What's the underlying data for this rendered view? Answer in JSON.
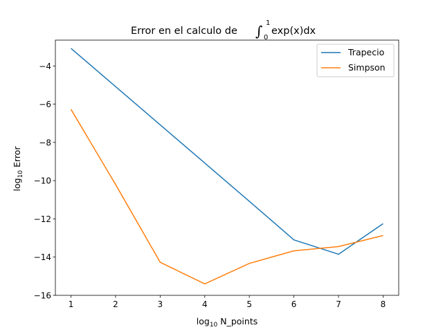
{
  "chart_data": {
    "type": "line",
    "title": {
      "prefix": "Error en el calculo de ",
      "integral_sign": "∫",
      "upper_limit": "1",
      "lower_limit": "0",
      "integrand": "exp(x)dx"
    },
    "xlabel": {
      "base": "log",
      "subscript": "10",
      "rest": " N_points"
    },
    "ylabel": {
      "base": "log",
      "subscript": "10",
      "rest": " Error"
    },
    "xlim": [
      0.65,
      8.35
    ],
    "ylim": [
      -16.0,
      -2.65
    ],
    "xticks": [
      1,
      2,
      3,
      4,
      5,
      6,
      7,
      8
    ],
    "yticks": [
      -16,
      -14,
      -12,
      -10,
      -8,
      -6,
      -4
    ],
    "ytick_labels": [
      "−16",
      "−14",
      "−12",
      "−10",
      "−8",
      "−6",
      "−4"
    ],
    "x": [
      1,
      2,
      3,
      4,
      5,
      6,
      7,
      8
    ],
    "series": [
      {
        "name": "Trapecio",
        "color": "#1f77b4",
        "values": [
          -3.08,
          -5.08,
          -7.08,
          -9.08,
          -11.08,
          -13.1,
          -13.85,
          -12.25
        ]
      },
      {
        "name": "Simpson",
        "color": "#ff7f0e",
        "values": [
          -6.27,
          -10.2,
          -14.27,
          -15.4,
          -14.33,
          -13.67,
          -13.45,
          -12.87
        ]
      }
    ],
    "legend_position": "top-right",
    "grid": false
  }
}
